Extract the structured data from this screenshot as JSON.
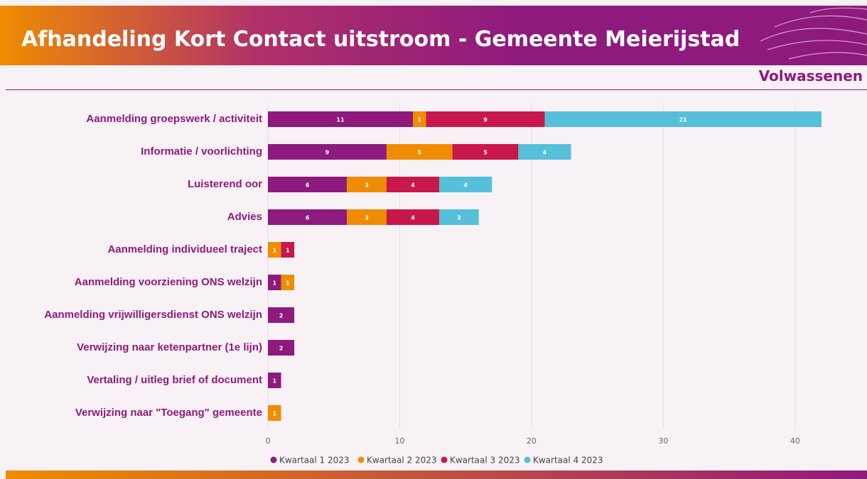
{
  "chart_data": {
    "type": "bar",
    "orientation": "horizontal",
    "stacked": true,
    "title": "Afhandeling Kort Contact uitstroom - Gemeente Meierijstad",
    "subtitle": "Volwassenen",
    "categories": [
      "Aanmelding groepswerk / activiteit",
      "Informatie / voorlichting",
      "Luisterend oor",
      "Advies",
      "Aanmelding individueel traject",
      "Aanmelding voorziening ONS welzijn",
      "Aanmelding vrijwilligersdienst ONS welzijn",
      "Verwijzing naar ketenpartner (1e lijn)",
      "Vertaling / uitleg brief of document",
      "Verwijzing naar \"Toegang\" gemeente"
    ],
    "series": [
      {
        "name": "Kwartaal 1 2023",
        "color": "#8e1a7e",
        "values": [
          11,
          9,
          6,
          6,
          null,
          1,
          2,
          2,
          1,
          null
        ]
      },
      {
        "name": "Kwartaal 2 2023",
        "color": "#ef8c00",
        "values": [
          1,
          5,
          3,
          3,
          1,
          1,
          null,
          null,
          null,
          1
        ]
      },
      {
        "name": "Kwartaal 3 2023",
        "color": "#c8174a",
        "values": [
          9,
          5,
          4,
          4,
          1,
          null,
          null,
          null,
          null,
          null
        ]
      },
      {
        "name": "Kwartaal 4 2023",
        "color": "#56bfd9",
        "values": [
          21,
          4,
          4,
          3,
          null,
          null,
          null,
          null,
          null,
          null
        ]
      }
    ],
    "xlim": [
      0,
      44
    ],
    "xticks": [
      0,
      10,
      20,
      30,
      40
    ],
    "grid": true,
    "legend": "bottom"
  }
}
